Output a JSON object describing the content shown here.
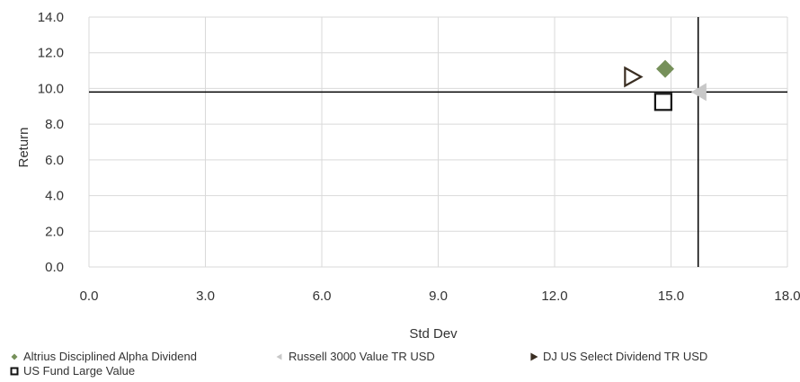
{
  "chart_data": {
    "type": "scatter",
    "xlabel": "Std Dev",
    "ylabel": "Return",
    "xlim": [
      0,
      18
    ],
    "ylim": [
      0,
      14
    ],
    "x_ticks": [
      "0.0",
      "3.0",
      "6.0",
      "9.0",
      "12.0",
      "15.0",
      "18.0"
    ],
    "y_ticks": [
      "0.0",
      "2.0",
      "4.0",
      "6.0",
      "8.0",
      "10.0",
      "12.0",
      "14.0"
    ],
    "reference_lines": {
      "x": 15.7,
      "y": 9.8
    },
    "grid": true,
    "legend_position": "bottom",
    "series": [
      {
        "name": "Altrius Disciplined Alpha Dividend",
        "x": 14.85,
        "y": 11.1,
        "marker": "diamond",
        "color": "#76905a"
      },
      {
        "name": "Russell 3000 Value TR USD",
        "x": 15.75,
        "y": 9.8,
        "marker": "triangle-left",
        "color": "#c8c8c8"
      },
      {
        "name": "DJ US Select Dividend TR USD",
        "x": 14.0,
        "y": 10.65,
        "marker": "triangle-right-open",
        "color": "#3a2e22"
      },
      {
        "name": "US Fund Large Value",
        "x": 14.8,
        "y": 9.25,
        "marker": "square-open",
        "color": "#111111"
      }
    ]
  }
}
